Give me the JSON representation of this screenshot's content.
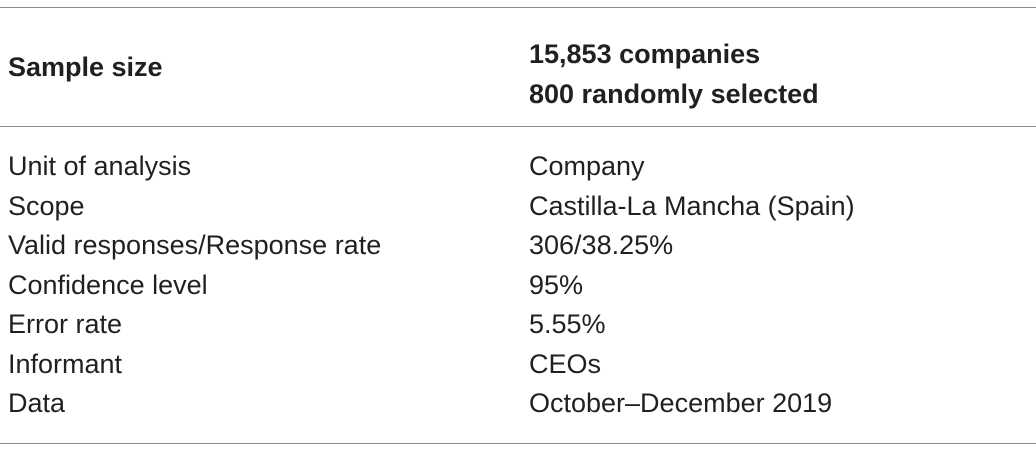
{
  "table": {
    "header": {
      "label": "Sample size",
      "values": [
        "15,853 companies",
        "800 randomly selected"
      ]
    },
    "rows": [
      {
        "label": "Unit of analysis",
        "value": "Company"
      },
      {
        "label": "Scope",
        "value": "Castilla-La Mancha (Spain)"
      },
      {
        "label": "Valid responses/Response rate",
        "value": "306/38.25%"
      },
      {
        "label": "Confidence level",
        "value": "95%"
      },
      {
        "label": "Error rate",
        "value": "5.55%"
      },
      {
        "label": "Informant",
        "value": "CEOs"
      },
      {
        "label": "Data",
        "value": "October–December 2019"
      }
    ]
  },
  "colors": {
    "text": "#231f20",
    "rule": "#8c8c8c"
  }
}
